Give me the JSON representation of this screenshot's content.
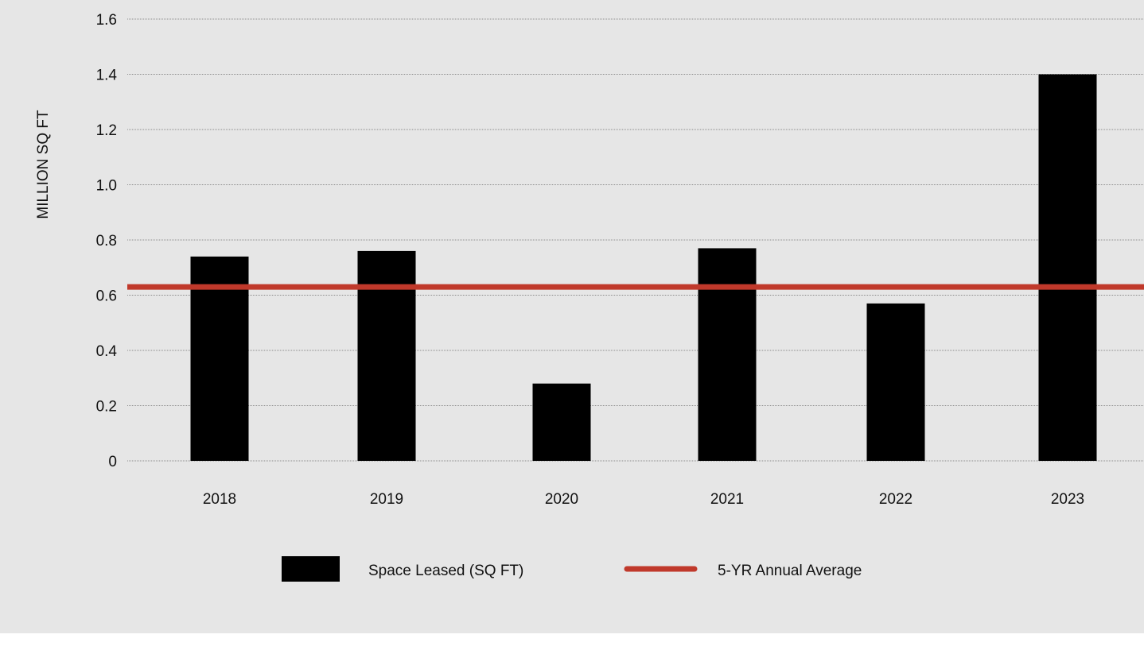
{
  "chart_data": {
    "type": "bar",
    "categories": [
      "2018",
      "2019",
      "2020",
      "2021",
      "2022",
      "2023"
    ],
    "series": [
      {
        "name": "Space Leased (SQ FT)",
        "type": "bar",
        "values": [
          0.74,
          0.76,
          0.28,
          0.77,
          0.57,
          1.4
        ]
      },
      {
        "name": "5-YR Annual Average",
        "type": "line",
        "value": 0.63
      }
    ],
    "ylabel": "MILLION SQ FT",
    "xlabel": "",
    "ylim": [
      0,
      1.6
    ],
    "yticks": [
      "0",
      "0.2",
      "0.4",
      "0.6",
      "0.8",
      "1.0",
      "1.2",
      "1.4",
      "1.6"
    ],
    "grid": true,
    "legend_position": "bottom",
    "colors": {
      "bar": "#000000",
      "average_line": "#c0392b",
      "background": "#e6e6e6",
      "grid": "#8c8c8c"
    }
  }
}
